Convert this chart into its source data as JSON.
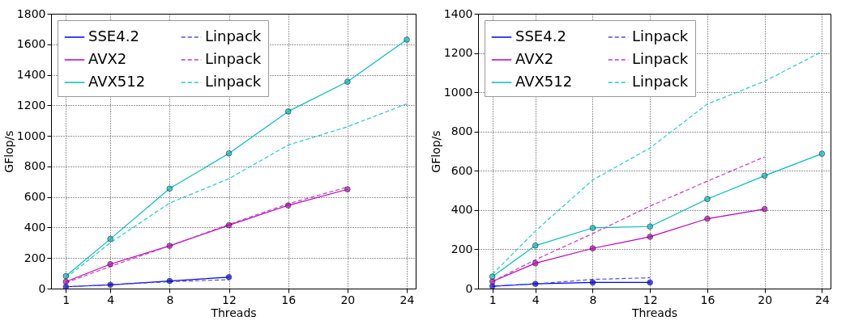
{
  "chart_data": [
    {
      "type": "line",
      "xlabel": "Threads",
      "ylabel": "GFlop/s",
      "xlim": [
        0,
        24.6
      ],
      "xticks": [
        1,
        4,
        8,
        12,
        16,
        20,
        24
      ],
      "ylim": [
        0,
        1800
      ],
      "yticks": [
        0,
        200,
        400,
        600,
        800,
        1000,
        1200,
        1400,
        1600,
        1800
      ],
      "grid": true,
      "legend": "top left",
      "series": [
        {
          "name": "SSE4.2",
          "color": "#0000ff",
          "marker": "circle",
          "line_style": "solid",
          "x": [
            1,
            4,
            8,
            12
          ],
          "values": [
            12,
            25,
            50,
            75
          ]
        },
        {
          "name": "AVX2",
          "color": "#bf00bf",
          "marker": "circle",
          "line_style": "solid",
          "x": [
            1,
            4,
            8,
            12,
            16,
            20
          ],
          "values": [
            45,
            160,
            280,
            415,
            545,
            650
          ]
        },
        {
          "name": "AVX512",
          "color": "#00bfbf",
          "marker": "circle",
          "line_style": "solid",
          "x": [
            1,
            4,
            8,
            12,
            16,
            20,
            24
          ],
          "values": [
            82,
            325,
            655,
            885,
            1160,
            1355,
            1630
          ]
        },
        {
          "name": "Linpack",
          "color": "#4d4dff",
          "marker": "none",
          "line_style": "dashed",
          "x": [
            1,
            4,
            8,
            12
          ],
          "values": [
            12,
            25,
            45,
            58
          ]
        },
        {
          "name": "Linpack",
          "color": "#cc33cc",
          "marker": "none",
          "line_style": "dashed",
          "x": [
            1,
            4,
            8,
            12,
            16,
            20
          ],
          "values": [
            38,
            145,
            280,
            420,
            555,
            665
          ]
        },
        {
          "name": "Linpack",
          "color": "#1fcccc",
          "marker": "none",
          "line_style": "dashed",
          "x": [
            1,
            4,
            8,
            12,
            16,
            20,
            24
          ],
          "values": [
            70,
            300,
            560,
            720,
            940,
            1060,
            1210
          ]
        }
      ]
    },
    {
      "type": "line",
      "xlabel": "Threads",
      "ylabel": "GFlop/s",
      "xlim": [
        0,
        24.6
      ],
      "xticks": [
        1,
        4,
        8,
        12,
        16,
        20,
        24
      ],
      "ylim": [
        0,
        1400
      ],
      "yticks": [
        0,
        200,
        400,
        600,
        800,
        1000,
        1200,
        1400
      ],
      "grid": true,
      "legend": "top left",
      "series": [
        {
          "name": "SSE4.2",
          "color": "#0000ff",
          "marker": "circle",
          "line_style": "solid",
          "x": [
            1,
            4,
            8,
            12
          ],
          "values": [
            12,
            24,
            31,
            31
          ]
        },
        {
          "name": "AVX2",
          "color": "#bf00bf",
          "marker": "circle",
          "line_style": "solid",
          "x": [
            1,
            4,
            8,
            12,
            16,
            20
          ],
          "values": [
            36,
            129,
            205,
            264,
            356,
            405
          ]
        },
        {
          "name": "AVX512",
          "color": "#00bfbf",
          "marker": "circle",
          "line_style": "solid",
          "x": [
            1,
            4,
            8,
            12,
            16,
            20,
            24
          ],
          "values": [
            61,
            219,
            309,
            316,
            456,
            575,
            687
          ]
        },
        {
          "name": "Linpack",
          "color": "#4d4dff",
          "marker": "none",
          "line_style": "dashed",
          "x": [
            1,
            4,
            8,
            12
          ],
          "values": [
            12,
            24,
            47,
            55
          ]
        },
        {
          "name": "Linpack",
          "color": "#cc33cc",
          "marker": "none",
          "line_style": "dashed",
          "x": [
            1,
            4,
            8,
            12,
            16,
            20
          ],
          "values": [
            36,
            147,
            280,
            420,
            547,
            671
          ]
        },
        {
          "name": "Linpack",
          "color": "#1fcccc",
          "marker": "none",
          "line_style": "dashed",
          "x": [
            1,
            4,
            8,
            12,
            16,
            20,
            24
          ],
          "values": [
            73,
            293,
            553,
            716,
            940,
            1056,
            1207
          ]
        }
      ]
    }
  ]
}
